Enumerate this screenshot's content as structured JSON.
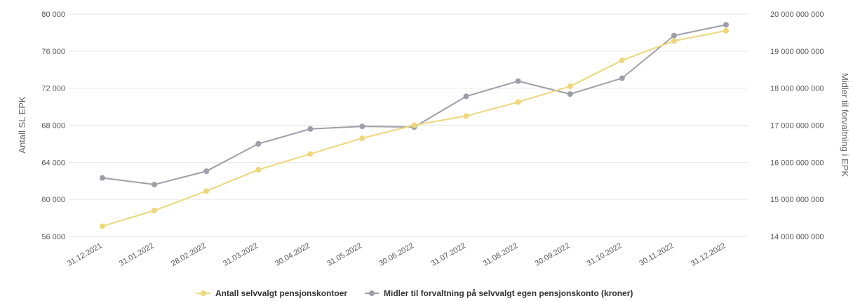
{
  "chart_data": {
    "type": "line",
    "categories": [
      "31.12.2021",
      "31.01.2022",
      "28.02.2022",
      "31.03.2022",
      "30.04.2022",
      "31.05.2022",
      "30.06.2022",
      "31.07.2022",
      "31.08.2022",
      "30.09.2022",
      "31.10.2022",
      "30.11.2022",
      "31.12.2022"
    ],
    "y_left": {
      "label": "Antall SL EPK",
      "ylim": [
        56000,
        80000
      ],
      "ticks": [
        56000,
        60000,
        64000,
        68000,
        72000,
        76000,
        80000
      ],
      "tick_labels": [
        "56 000",
        "60 000",
        "64 000",
        "68 000",
        "72 000",
        "76 000",
        "80 000"
      ]
    },
    "y_right": {
      "label": "Midler til forvaltning i EPK",
      "ylim": [
        14000000000,
        20000000000
      ],
      "ticks": [
        14000000000,
        15000000000,
        16000000000,
        17000000000,
        18000000000,
        19000000000,
        20000000000
      ],
      "tick_labels": [
        "14 000 000 000",
        "15 000 000 000",
        "16 000 000 000",
        "17 000 000 000",
        "18 000 000 000",
        "19 000 000 000",
        "20 000 000 000"
      ]
    },
    "series": [
      {
        "name": "Antall selvvalgt pensjonskontoer",
        "axis": "left",
        "color": "#eed77a",
        "values": [
          57100,
          58800,
          60900,
          63200,
          64900,
          66600,
          68000,
          69000,
          70500,
          72200,
          75000,
          77100,
          78200
        ]
      },
      {
        "name": "Midler til forvaltning på selvvalgt egen pensjonskonto (kroner)",
        "axis": "right",
        "color": "#9e9ea8",
        "values": [
          15580000000,
          15400000000,
          15760000000,
          16500000000,
          16900000000,
          16970000000,
          16950000000,
          17780000000,
          18190000000,
          17840000000,
          18270000000,
          19420000000,
          19710000000
        ]
      }
    ],
    "grid": true,
    "legend_position": "bottom-center"
  }
}
